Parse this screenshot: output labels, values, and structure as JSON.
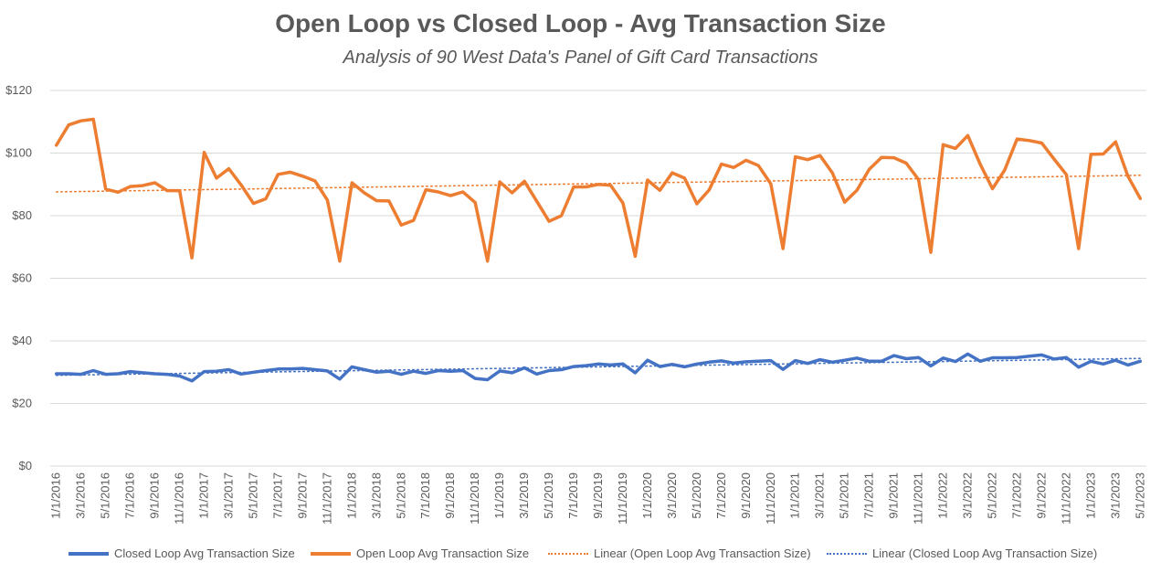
{
  "chart_data": {
    "type": "line",
    "title": "Open Loop vs Closed Loop - Avg Transaction Size",
    "subtitle": "Analysis of 90 West Data's Panel of Gift Card Transactions",
    "ylim": [
      0,
      120
    ],
    "yticks": [
      "$0",
      "$20",
      "$40",
      "$60",
      "$80",
      "$100",
      "$120"
    ],
    "ytick_values": [
      0,
      20,
      40,
      60,
      80,
      100,
      120
    ],
    "grid": true,
    "xtick_labels": [
      "1/1/2016",
      "3/1/2016",
      "5/1/2016",
      "7/1/2016",
      "9/1/2016",
      "11/1/2016",
      "1/1/2017",
      "3/1/2017",
      "5/1/2017",
      "7/1/2017",
      "9/1/2017",
      "11/1/2017",
      "1/1/2018",
      "3/1/2018",
      "5/1/2018",
      "7/1/2018",
      "9/1/2018",
      "11/1/2018",
      "1/1/2019",
      "3/1/2019",
      "5/1/2019",
      "7/1/2019",
      "9/1/2019",
      "11/1/2019",
      "1/1/2020",
      "3/1/2020",
      "5/1/2020",
      "7/1/2020",
      "9/1/2020",
      "11/1/2020",
      "1/1/2021",
      "3/1/2021",
      "5/1/2021",
      "7/1/2021",
      "9/1/2021",
      "11/1/2021",
      "1/1/2022",
      "3/1/2022",
      "5/1/2022",
      "7/1/2022",
      "9/1/2022",
      "11/1/2022",
      "1/1/2023",
      "3/1/2023",
      "5/1/2023"
    ],
    "months_count": 89,
    "series": [
      {
        "name": "Closed Loop Avg Transaction Size",
        "color": "#4472C4",
        "style": "solid",
        "values": [
          29.5,
          29.5,
          29.3,
          30.5,
          29.3,
          29.5,
          30.2,
          29.8,
          29.5,
          29.3,
          28.8,
          27.2,
          30.2,
          30.3,
          30.8,
          29.4,
          30,
          30.5,
          31,
          31,
          31.2,
          30.8,
          30.4,
          27.8,
          31.7,
          30.8,
          30,
          30.3,
          29.3,
          30.3,
          29.6,
          30.5,
          30.3,
          30.5,
          28,
          27.6,
          30.4,
          29.8,
          31.4,
          29.4,
          30.5,
          30.8,
          31.8,
          32.1,
          32.6,
          32.3,
          32.6,
          29.8,
          33.8,
          31.8,
          32.5,
          31.7,
          32.6,
          33.2,
          33.6,
          32.9,
          33.3,
          33.5,
          33.7,
          30.9,
          33.7,
          32.8,
          34,
          33.2,
          33.8,
          34.5,
          33.5,
          33.5,
          35.3,
          34.3,
          34.7,
          32,
          34.5,
          33.4,
          35.8,
          33.5,
          34.6,
          34.6,
          34.7,
          35.1,
          35.5,
          34.2,
          34.7,
          31.6,
          33.5,
          32.6,
          33.8,
          32.3,
          33.5
        ]
      },
      {
        "name": "Open Loop Avg Transaction Size",
        "color": "#ED7D31",
        "style": "solid",
        "values": [
          102.5,
          109,
          110.3,
          110.8,
          88.5,
          87.5,
          89.3,
          89.6,
          90.5,
          88,
          88,
          66.5,
          100.2,
          92,
          95,
          89.8,
          83.9,
          85.4,
          93.2,
          93.9,
          92.6,
          91.1,
          85,
          65.5,
          90.5,
          87.3,
          84.8,
          84.7,
          77,
          78.5,
          88.3,
          87.6,
          86.4,
          87.6,
          84.2,
          65.5,
          90.8,
          87.3,
          91,
          84.6,
          78.2,
          80,
          89.2,
          89.2,
          90,
          89.7,
          84,
          67,
          91.4,
          88.1,
          93.7,
          92,
          83.8,
          88.2,
          96.5,
          95.4,
          97.7,
          96,
          90.2,
          69.5,
          98.8,
          97.9,
          99.2,
          93.7,
          84.3,
          88.1,
          94.8,
          98.6,
          98.5,
          96.8,
          91.5,
          68.3,
          102.7,
          101.5,
          105.6,
          96.5,
          88.6,
          94.6,
          104.5,
          104,
          103.2,
          98.1,
          93.1,
          69.5,
          99.6,
          99.7,
          103.6,
          92.6,
          85.5
        ]
      },
      {
        "name": "Linear (Open Loop Avg Transaction Size)",
        "color": "#ED7D31",
        "style": "dotted",
        "values": [
          87.6,
          92.9
        ]
      },
      {
        "name": "Linear (Closed Loop Avg Transaction Size)",
        "color": "#4472C4",
        "style": "dotted",
        "values": [
          29.0,
          34.4
        ]
      }
    ]
  }
}
